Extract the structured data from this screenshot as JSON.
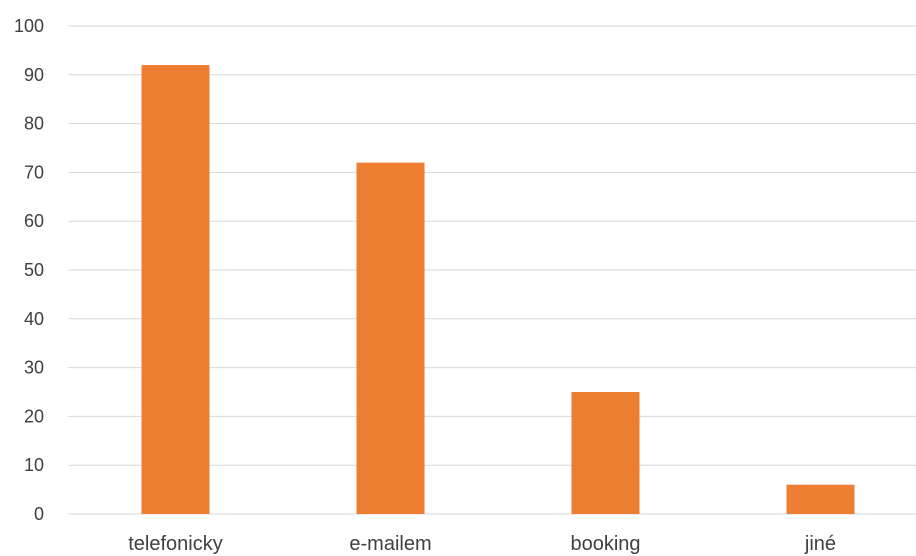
{
  "chart_data": {
    "type": "bar",
    "categories": [
      "telefonicky",
      "e-mailem",
      "booking",
      "jiné"
    ],
    "values": [
      92,
      72,
      25,
      6
    ],
    "title": "",
    "xlabel": "",
    "ylabel": "",
    "ylim": [
      0,
      100
    ],
    "yticks": [
      0,
      10,
      20,
      30,
      40,
      50,
      60,
      70,
      80,
      90,
      100
    ],
    "grid": true,
    "legend": "none",
    "bar_color": "#ED7D31",
    "grid_color": "#D9D9D9",
    "text_color": "#404040"
  }
}
